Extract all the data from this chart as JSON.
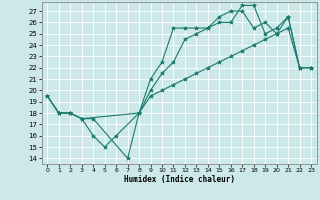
{
  "xlabel": "Humidex (Indice chaleur)",
  "bg_color": "#cce8e8",
  "grid_color": "#ffffff",
  "line_color": "#1a7a6e",
  "xlim": [
    -0.5,
    23.5
  ],
  "ylim": [
    13.5,
    27.8
  ],
  "xticks": [
    0,
    1,
    2,
    3,
    4,
    5,
    6,
    7,
    8,
    9,
    10,
    11,
    12,
    13,
    14,
    15,
    16,
    17,
    18,
    19,
    20,
    21,
    22,
    23
  ],
  "yticks": [
    14,
    15,
    16,
    17,
    18,
    19,
    20,
    21,
    22,
    23,
    24,
    25,
    26,
    27
  ],
  "curve1_x": [
    0,
    1,
    2,
    3,
    4,
    7,
    8,
    9,
    10,
    11,
    12,
    13,
    14,
    15,
    16,
    17,
    18,
    19,
    20,
    21,
    22,
    23
  ],
  "curve1_y": [
    19.5,
    18.0,
    18.0,
    17.5,
    17.5,
    14.0,
    18.0,
    21.0,
    22.5,
    25.5,
    25.5,
    25.5,
    25.5,
    26.5,
    27.0,
    27.0,
    25.5,
    26.0,
    25.0,
    26.5,
    22.0,
    22.0
  ],
  "curve2_x": [
    0,
    1,
    2,
    3,
    4,
    5,
    6,
    8,
    9,
    10,
    11,
    12,
    13,
    14,
    15,
    16,
    17,
    18,
    19,
    20,
    21,
    22,
    23
  ],
  "curve2_y": [
    19.5,
    18.0,
    18.0,
    17.5,
    16.0,
    15.0,
    16.0,
    18.0,
    20.0,
    21.5,
    22.5,
    24.5,
    25.0,
    25.5,
    26.0,
    26.0,
    27.5,
    27.5,
    25.0,
    25.5,
    26.5,
    22.0,
    22.0
  ],
  "curve3_x": [
    0,
    1,
    2,
    3,
    8,
    9,
    10,
    11,
    12,
    13,
    14,
    15,
    16,
    17,
    18,
    19,
    20,
    21,
    22,
    23
  ],
  "curve3_y": [
    19.5,
    18.0,
    18.0,
    17.5,
    18.0,
    19.5,
    20.0,
    20.5,
    21.0,
    21.5,
    22.0,
    22.5,
    23.0,
    23.5,
    24.0,
    24.5,
    25.0,
    25.5,
    22.0,
    22.0
  ]
}
